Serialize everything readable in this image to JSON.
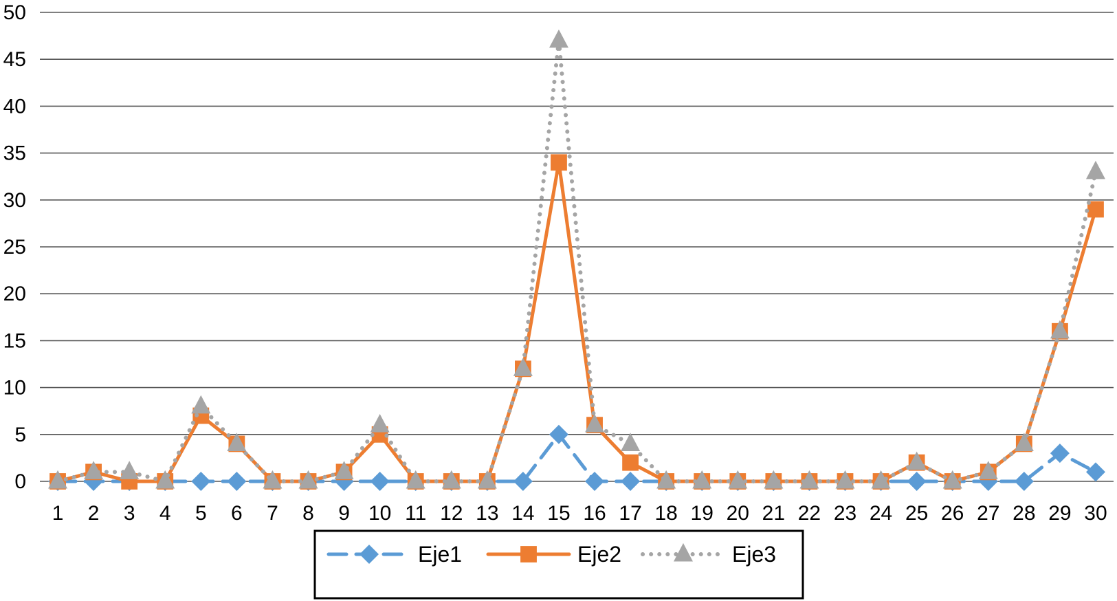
{
  "chart_data": {
    "type": "line",
    "title": "",
    "xlabel": "",
    "ylabel": "",
    "x": [
      1,
      2,
      3,
      4,
      5,
      6,
      7,
      8,
      9,
      10,
      11,
      12,
      13,
      14,
      15,
      16,
      17,
      18,
      19,
      20,
      21,
      22,
      23,
      24,
      25,
      26,
      27,
      28,
      29,
      30
    ],
    "ylim": [
      0,
      50
    ],
    "yticks": [
      0,
      5,
      10,
      15,
      20,
      25,
      30,
      35,
      40,
      45,
      50
    ],
    "grid": true,
    "legend_position": "bottom",
    "series": [
      {
        "name": "Eje1",
        "color": "#5b9bd5",
        "line_style": "dashed",
        "marker": "diamond",
        "values": [
          0,
          0,
          0,
          0,
          0,
          0,
          0,
          0,
          0,
          0,
          0,
          0,
          0,
          0,
          5,
          0,
          0,
          0,
          0,
          0,
          0,
          0,
          0,
          0,
          0,
          0,
          0,
          0,
          3,
          1
        ]
      },
      {
        "name": "Eje2",
        "color": "#ed7d31",
        "line_style": "solid",
        "marker": "square",
        "values": [
          0,
          1,
          0,
          0,
          7,
          4,
          0,
          0,
          1,
          5,
          0,
          0,
          0,
          12,
          34,
          6,
          2,
          0,
          0,
          0,
          0,
          0,
          0,
          0,
          2,
          0,
          1,
          4,
          16,
          29
        ]
      },
      {
        "name": "Eje3",
        "color": "#a5a5a5",
        "line_style": "dotted",
        "marker": "triangle",
        "values": [
          0,
          1,
          1,
          0,
          8,
          4,
          0,
          0,
          1,
          6,
          0,
          0,
          0,
          12,
          47,
          6,
          4,
          0,
          0,
          0,
          0,
          0,
          0,
          0,
          2,
          0,
          1,
          4,
          16,
          33
        ]
      }
    ]
  }
}
